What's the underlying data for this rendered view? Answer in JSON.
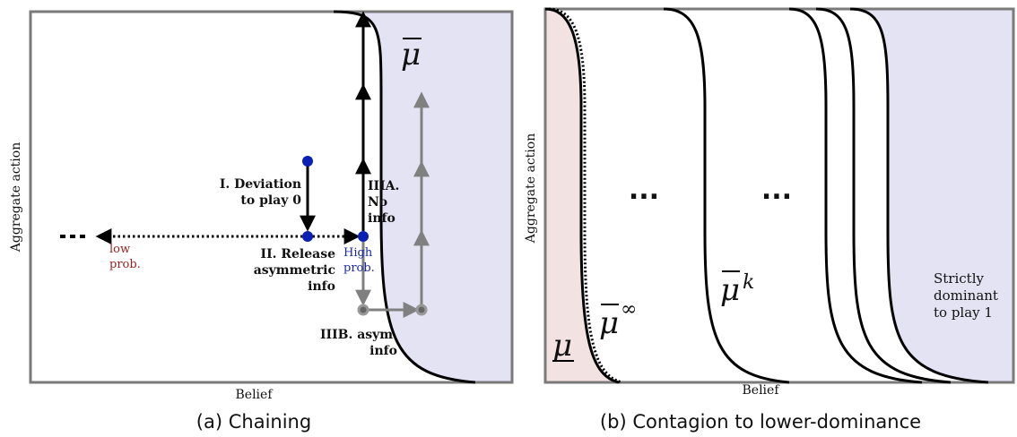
{
  "panel_a": {
    "caption": "(a) Chaining",
    "xlabel": "Belief",
    "ylabel": "Aggregate action",
    "curve_label": "μ",
    "step1_line1": "I. Deviation",
    "step1_line2": "to play 0",
    "step2_line1": "II. Release",
    "step2_line2": "asymmetric",
    "step2_line3": "info",
    "low_line1": "low",
    "low_line2": "prob.",
    "high_line1": "High",
    "high_line2": "prob.",
    "step3a_line1": "IIIA.",
    "step3a_line2": "No",
    "step3a_line3": "info",
    "step3b_line1": "IIIB. asym.",
    "step3b_line2": "info"
  },
  "panel_b": {
    "caption": "(b) Contagion to lower-dominance",
    "xlabel": "Belief",
    "ylabel": "Aggregate action",
    "lower_label": "μ",
    "inf_label": "μ",
    "inf_sup": "∞",
    "k_label": "μ",
    "k_sup": "k",
    "ellipsis1": "...",
    "ellipsis2": "...",
    "dominant_line1": "Strictly",
    "dominant_line2": "dominant",
    "dominant_line3": "to play 1"
  },
  "colors": {
    "frame": "#7a7a7a",
    "blue_region": "#e3e3f3",
    "pink_region": "#f3e2e2",
    "dot_blue": "#0a1fb4",
    "gray_arrow": "#808080",
    "low_red": "#9b1f1f"
  }
}
